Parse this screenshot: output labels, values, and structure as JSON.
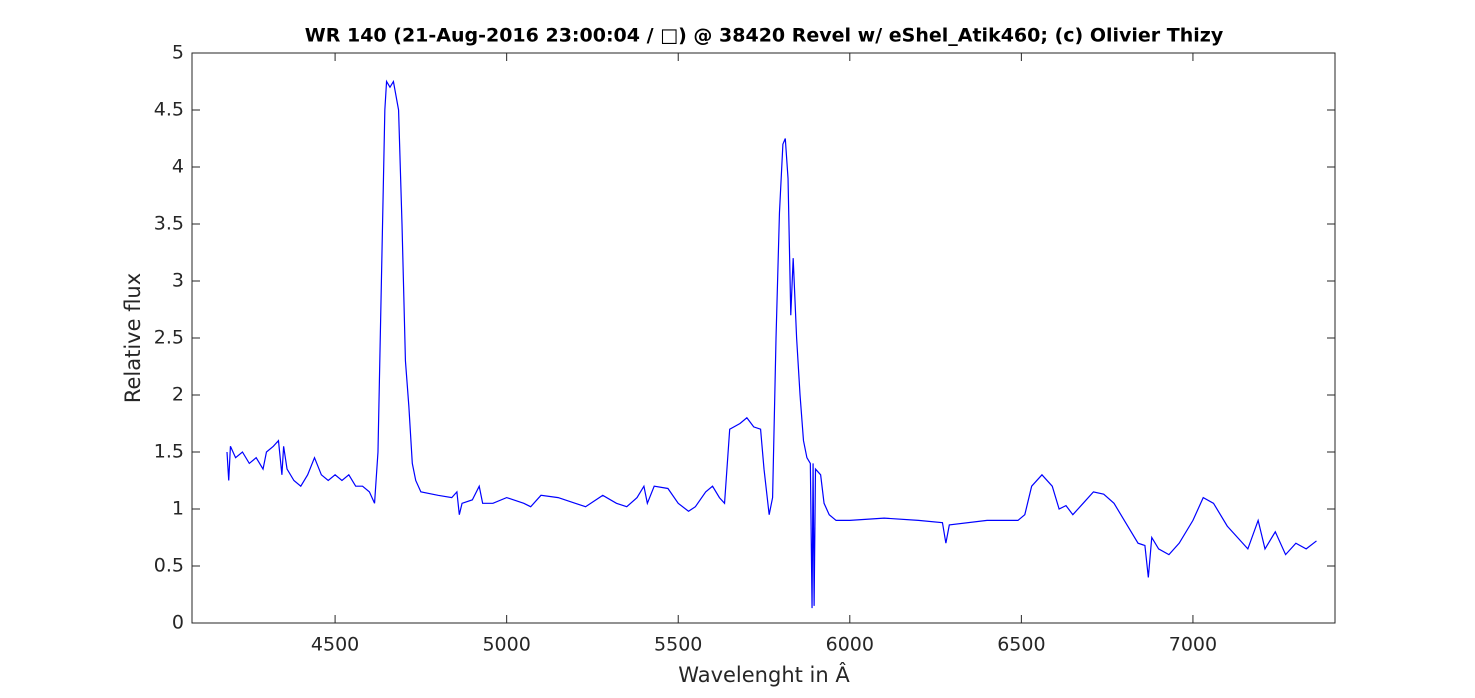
{
  "chart_data": {
    "type": "line",
    "title": "WR 140 (21-Aug-2016 23:00:04 / □) @ 38420 Revel w/ eShel_Atik460; (c) Olivier Thizy",
    "x_label": "Wavelenght in Â",
    "y_label": "Relative flux",
    "xlim": [
      4083,
      7414
    ],
    "xticks": [
      4500,
      5000,
      5500,
      6000,
      6500,
      7000
    ],
    "ylim": [
      0,
      5
    ],
    "yticks": [
      0,
      0.5,
      1,
      1.5,
      2,
      2.5,
      3,
      3.5,
      4,
      4.5,
      5
    ],
    "grid": false,
    "series": [
      {
        "color": "#0000ff",
        "x": [
          4185,
          4190,
          4195,
          4210,
          4230,
          4250,
          4270,
          4290,
          4300,
          4320,
          4335,
          4345,
          4350,
          4360,
          4380,
          4400,
          4420,
          4440,
          4460,
          4480,
          4500,
          4520,
          4540,
          4560,
          4580,
          4600,
          4615,
          4625,
          4635,
          4645,
          4650,
          4660,
          4670,
          4685,
          4695,
          4705,
          4715,
          4725,
          4735,
          4750,
          4800,
          4840,
          4855,
          4862,
          4870,
          4900,
          4920,
          4930,
          4960,
          5000,
          5050,
          5070,
          5100,
          5150,
          5200,
          5230,
          5280,
          5320,
          5350,
          5380,
          5400,
          5410,
          5430,
          5470,
          5500,
          5530,
          5550,
          5580,
          5600,
          5620,
          5635,
          5650,
          5680,
          5700,
          5720,
          5740,
          5750,
          5765,
          5775,
          5785,
          5795,
          5805,
          5812,
          5820,
          5828,
          5835,
          5845,
          5855,
          5865,
          5875,
          5885,
          5890,
          5893,
          5896,
          5900,
          5915,
          5925,
          5940,
          5960,
          6000,
          6100,
          6200,
          6270,
          6280,
          6290,
          6400,
          6490,
          6510,
          6530,
          6560,
          6590,
          6610,
          6630,
          6650,
          6680,
          6710,
          6740,
          6770,
          6800,
          6840,
          6860,
          6870,
          6880,
          6900,
          6930,
          6960,
          7000,
          7030,
          7060,
          7100,
          7130,
          7160,
          7190,
          7210,
          7240,
          7270,
          7300,
          7330,
          7360
        ],
        "values": [
          1.5,
          1.25,
          1.55,
          1.45,
          1.5,
          1.4,
          1.45,
          1.35,
          1.5,
          1.55,
          1.6,
          1.3,
          1.55,
          1.35,
          1.25,
          1.2,
          1.3,
          1.45,
          1.3,
          1.25,
          1.3,
          1.25,
          1.3,
          1.2,
          1.2,
          1.15,
          1.05,
          1.5,
          3.0,
          4.5,
          4.75,
          4.7,
          4.75,
          4.5,
          3.5,
          2.3,
          1.9,
          1.4,
          1.25,
          1.15,
          1.12,
          1.1,
          1.15,
          0.95,
          1.05,
          1.08,
          1.2,
          1.05,
          1.05,
          1.1,
          1.05,
          1.02,
          1.12,
          1.1,
          1.05,
          1.02,
          1.12,
          1.05,
          1.02,
          1.1,
          1.2,
          1.05,
          1.2,
          1.18,
          1.05,
          0.98,
          1.02,
          1.15,
          1.2,
          1.1,
          1.05,
          1.7,
          1.75,
          1.8,
          1.72,
          1.7,
          1.35,
          0.95,
          1.1,
          2.5,
          3.6,
          4.2,
          4.25,
          3.9,
          2.7,
          3.2,
          2.5,
          2.0,
          1.6,
          1.45,
          1.4,
          0.13,
          1.4,
          0.15,
          1.35,
          1.3,
          1.05,
          0.95,
          0.9,
          0.9,
          0.92,
          0.9,
          0.88,
          0.7,
          0.86,
          0.9,
          0.9,
          0.95,
          1.2,
          1.3,
          1.2,
          1.0,
          1.03,
          0.95,
          1.05,
          1.15,
          1.13,
          1.05,
          0.9,
          0.7,
          0.68,
          0.4,
          0.75,
          0.65,
          0.6,
          0.7,
          0.9,
          1.1,
          1.05,
          0.85,
          0.75,
          0.65,
          0.9,
          0.65,
          0.8,
          0.6,
          0.7,
          0.65,
          0.72
        ]
      }
    ]
  }
}
